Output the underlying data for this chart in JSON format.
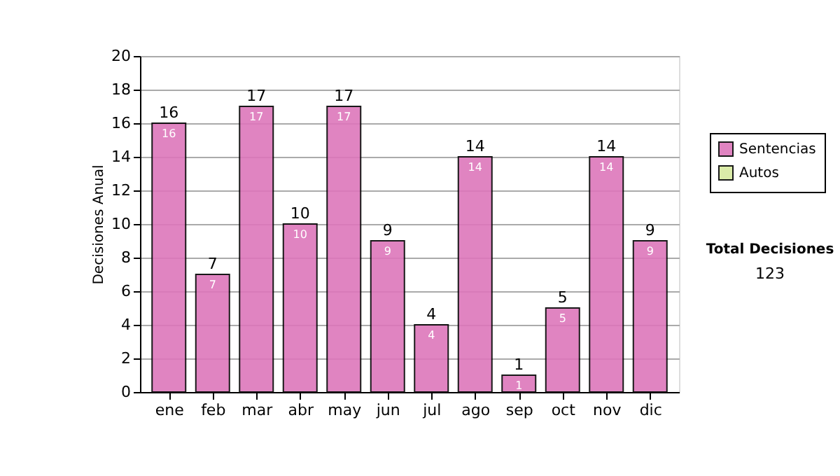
{
  "chart_data": {
    "type": "bar",
    "ylabel": "Decisiones Anual",
    "categories": [
      "ene",
      "feb",
      "mar",
      "abr",
      "may",
      "jun",
      "jul",
      "ago",
      "sep",
      "oct",
      "nov",
      "dic"
    ],
    "series": [
      {
        "name": "Sentencias",
        "color": "#dd77bb",
        "values": [
          16,
          7,
          17,
          10,
          17,
          9,
          4,
          14,
          1,
          5,
          14,
          9
        ]
      },
      {
        "name": "Autos",
        "color": "#d8eaa0",
        "values": [
          null,
          null,
          null,
          null,
          null,
          null,
          null,
          null,
          null,
          null,
          null,
          null
        ]
      }
    ],
    "ylim": [
      0,
      20
    ],
    "yticks": [
      0,
      2,
      4,
      6,
      8,
      10,
      12,
      14,
      16,
      18,
      20
    ],
    "totals": [
      "16",
      "7",
      "17",
      "10",
      "17",
      "9",
      "4",
      "14",
      "1",
      "5",
      "14",
      "9"
    ],
    "grid": "y",
    "legend": "right",
    "data_labels": true,
    "annotations": [
      "Total Decisiones",
      "123"
    ]
  }
}
